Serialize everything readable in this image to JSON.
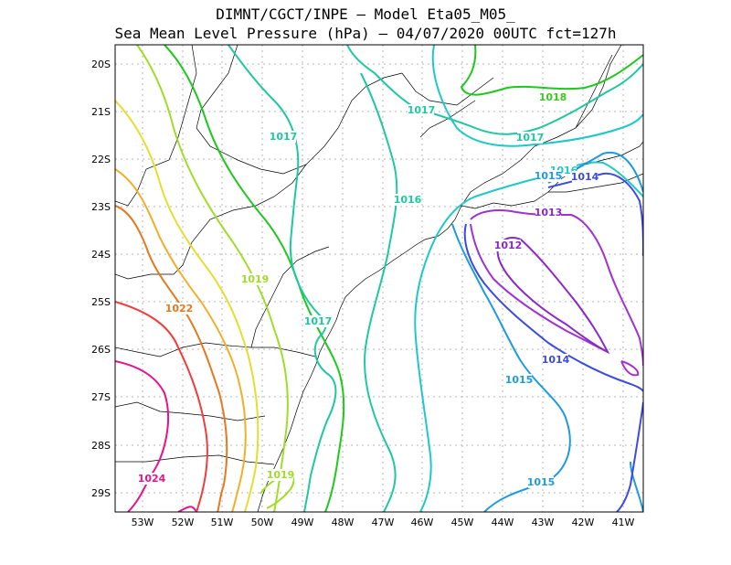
{
  "title_line1": "DIMNT/CGCT/INPE –  Model Eta05_M05_",
  "title_line2": "Sea Mean Level Pressure (hPa) – 04/07/2020 00UTC fct=127h",
  "lat_labels": [
    "20S",
    "21S",
    "22S",
    "23S",
    "24S",
    "25S",
    "26S",
    "27S",
    "28S",
    "29S"
  ],
  "lon_labels": [
    "53W",
    "52W",
    "51W",
    "50W",
    "49W",
    "48W",
    "47W",
    "46W",
    "45W",
    "44W",
    "43W",
    "42W",
    "41W"
  ],
  "contour_labels": [
    {
      "text": "1018",
      "color": "#3cc81e"
    },
    {
      "text": "1017",
      "color": "#1ec8a0"
    },
    {
      "text": "1017",
      "color": "#1ec8a0"
    },
    {
      "text": "1017",
      "color": "#1ec8a0"
    },
    {
      "text": "1017",
      "color": "#1ec8a0"
    },
    {
      "text": "1016",
      "color": "#1ec8a0"
    },
    {
      "text": "1016",
      "color": "#1ec8c8"
    },
    {
      "text": "1015",
      "color": "#1e9be0"
    },
    {
      "text": "1014",
      "color": "#3c4be0"
    },
    {
      "text": "1013",
      "color": "#8c28c8"
    },
    {
      "text": "1012",
      "color": "#8c28c8"
    },
    {
      "text": "1014",
      "color": "#3c4be0"
    },
    {
      "text": "1015",
      "color": "#1e9be0"
    },
    {
      "text": "1015",
      "color": "#1e9be0"
    },
    {
      "text": "1019",
      "color": "#a0dc28"
    },
    {
      "text": "1019",
      "color": "#a0dc28"
    },
    {
      "text": "1022",
      "color": "#e6781e"
    },
    {
      "text": "1024",
      "color": "#e6148c"
    }
  ],
  "colors": {
    "1012": "#8c28c8",
    "1013": "#a032d2",
    "1014": "#3c4be0",
    "1015": "#1e9be0",
    "1016": "#1ec8c8",
    "1017": "#1ec8a0",
    "1018": "#1ec81e",
    "1019": "#a0dc28",
    "1020": "#e6dc32",
    "1021": "#f0af28",
    "1022": "#e6781e",
    "1023": "#f03c3c",
    "1024": "#e6148c"
  }
}
